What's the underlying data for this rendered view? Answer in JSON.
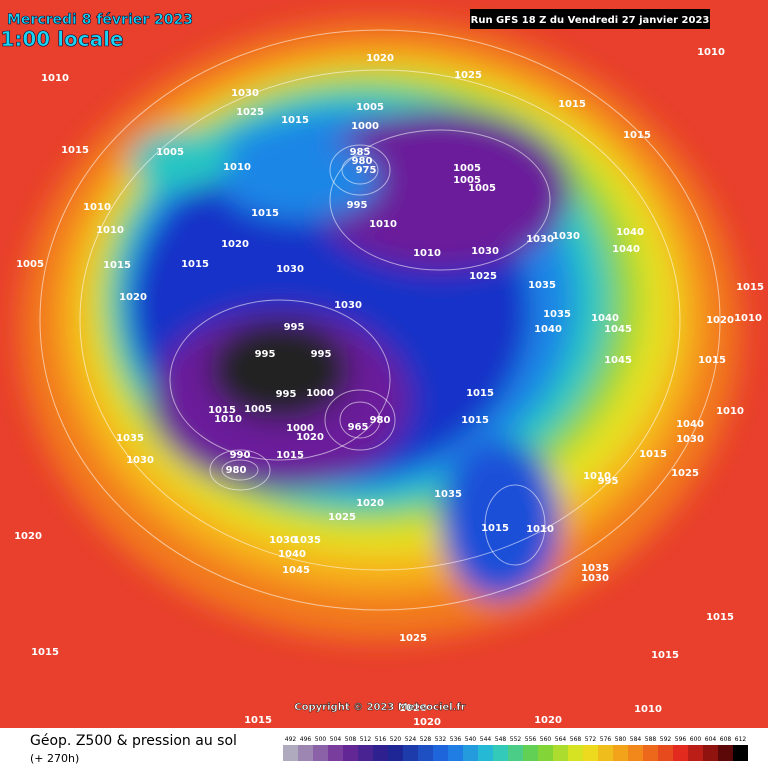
{
  "header": {
    "title": "Mercredi 8 février 2023",
    "subtitle": "1:00 locale",
    "run": "Run GFS 18 Z du Vendredi 27 janvier 2023"
  },
  "copyright": "Copyright © 2023 Meteociel.fr",
  "legend": {
    "title": "Géop. Z500 & pression au sol",
    "subtitle": "(+ 270h)",
    "ticks": [
      492,
      496,
      500,
      504,
      508,
      512,
      516,
      520,
      524,
      528,
      532,
      536,
      540,
      544,
      548,
      552,
      556,
      560,
      564,
      568,
      572,
      576,
      580,
      584,
      588,
      592,
      596,
      600,
      604,
      608,
      612
    ]
  },
  "isobar_labels": [
    1010,
    1015,
    1030,
    1025,
    1015,
    1020,
    1025,
    1005,
    1010,
    1010,
    1010,
    1005,
    1015,
    1020,
    1015,
    1015,
    1030,
    1020,
    1030,
    1005,
    1000,
    985,
    980,
    975,
    995,
    1010,
    1005,
    1005,
    1005,
    1010,
    1030,
    1025,
    1030,
    1030,
    1035,
    1040,
    1040,
    1015,
    1015,
    1010,
    1015,
    1020,
    1010,
    1035,
    1040,
    1040,
    1045,
    1045,
    1015,
    1010,
    1040,
    1030,
    1015,
    1025,
    1010,
    995,
    995,
    995,
    995,
    995,
    1000,
    1015,
    1010,
    1005,
    1000,
    1020,
    1015,
    965,
    980,
    990,
    980,
    1015,
    1015,
    1035,
    1030,
    1035,
    1020,
    1025,
    1015,
    1010,
    1035,
    1030,
    1020,
    1030,
    1035,
    1040,
    1045,
    1025,
    1015,
    1015,
    1015,
    1015,
    1010,
    1020,
    1020,
    1020
  ]
}
